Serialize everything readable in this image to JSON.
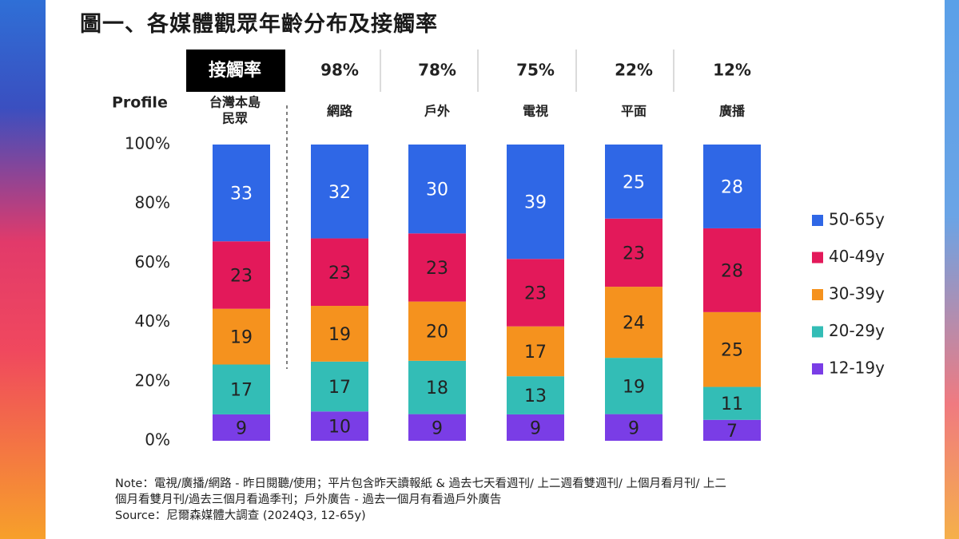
{
  "page": {
    "title": "圖一、各媒體觀眾年齡分布及接觸率",
    "note_line1": "Note：電視/廣播/網路 - 昨日閱聽/使用；平片包含昨天讀報紙 & 過去七天看週刊/ 上二週看雙週刊/ 上個月看月刊/ 上二",
    "note_line2": "個月看雙月刊/過去三個月看過季刊；戶外廣告 - 過去一個月有看過戶外廣告",
    "source": "Source：尼爾森媒體大調查 (2024Q3, 12-65y)"
  },
  "colors": {
    "50-65y": "#2f67e6",
    "40-49y": "#e3195a",
    "30-39y": "#f5921e",
    "20-29y": "#33bdb6",
    "12-19y": "#7a3de6",
    "header_bg": "#000000"
  },
  "chart_data": {
    "type": "bar",
    "stacked": true,
    "ylim": [
      0,
      100
    ],
    "yticks": [
      "0%",
      "20%",
      "40%",
      "60%",
      "80%",
      "100%"
    ],
    "row_label": "Profile",
    "header_first": "接觸率",
    "categories": [
      "台灣本島\n民眾",
      "網路",
      "戶外",
      "電視",
      "平面",
      "廣播"
    ],
    "reach": [
      "",
      "98%",
      "78%",
      "75%",
      "22%",
      "12%"
    ],
    "series": [
      {
        "name": "12-19y",
        "values": [
          9,
          10,
          9,
          9,
          9,
          7
        ]
      },
      {
        "name": "20-29y",
        "values": [
          17,
          17,
          18,
          13,
          19,
          11
        ]
      },
      {
        "name": "30-39y",
        "values": [
          19,
          19,
          20,
          17,
          24,
          25
        ]
      },
      {
        "name": "40-49y",
        "values": [
          23,
          23,
          23,
          23,
          23,
          28
        ]
      },
      {
        "name": "50-65y",
        "values": [
          33,
          32,
          30,
          39,
          25,
          28
        ]
      }
    ],
    "legend": [
      "50-65y",
      "40-49y",
      "30-39y",
      "20-29y",
      "12-19y"
    ],
    "legend_position": "right"
  }
}
